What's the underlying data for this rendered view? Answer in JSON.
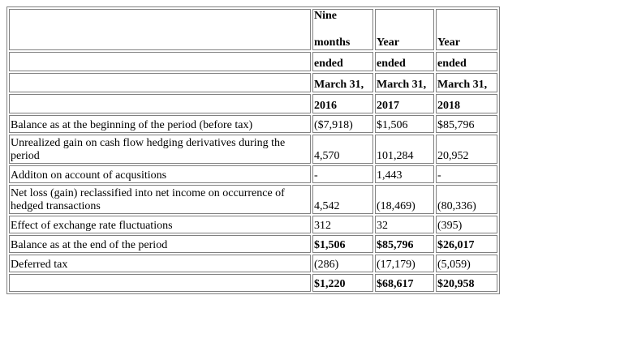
{
  "header": {
    "col1": [
      "Nine",
      "months",
      "ended",
      "March 31,",
      "2016"
    ],
    "col2": [
      "Year",
      "ended",
      "March 31,",
      "2017"
    ],
    "col3": [
      "Year",
      "ended",
      "March 31,",
      "2018"
    ]
  },
  "rows": [
    {
      "label": "Balance as at the beginning of the period (before tax)",
      "v1": "($7,918)",
      "v2": "$1,506",
      "v3": "$85,796"
    },
    {
      "label": "Unrealized gain on cash flow hedging derivatives during the period",
      "v1": "4,570",
      "v2": "101,284",
      "v3": "20,952"
    },
    {
      "label": "Additon on account of acqusitions",
      "v1": "-",
      "v2": "1,443",
      "v3": "-"
    },
    {
      "label": "Net loss (gain) reclassified into net income on occurrence of hedged transactions",
      "v1": "4,542",
      "v2": "(18,469)",
      "v3": "(80,336)"
    },
    {
      "label": "Effect of exchange rate fluctuations",
      "v1": "312",
      "v2": "32",
      "v3": "(395)"
    },
    {
      "label": "Balance as at the end of the period",
      "v1": "$1,506",
      "v2": "$85,796",
      "v3": "$26,017"
    },
    {
      "label": "Deferred tax",
      "v1": "(286)",
      "v2": "(17,179)",
      "v3": "(5,059)"
    },
    {
      "label": "",
      "v1": "$1,220",
      "v2": "$68,617",
      "v3": "$20,958"
    }
  ]
}
